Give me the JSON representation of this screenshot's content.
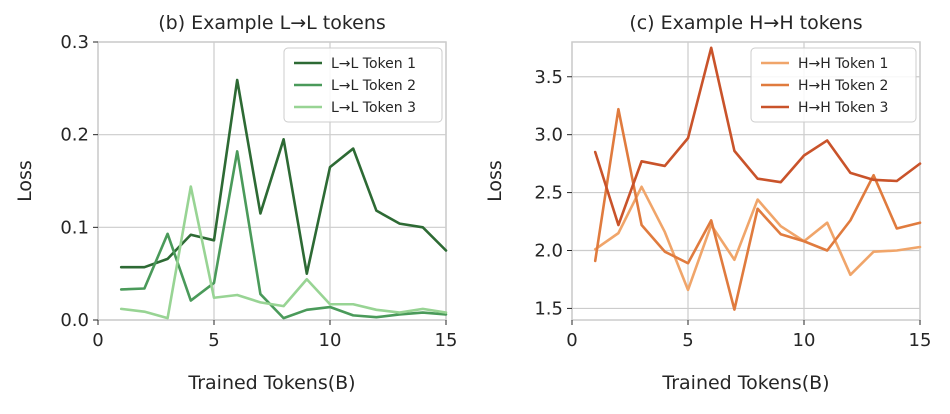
{
  "chart_data": [
    {
      "type": "line",
      "title": "(b) Example L→L tokens",
      "xlabel": "Trained Tokens(B)",
      "ylabel": "Loss",
      "xlim": [
        0,
        15
      ],
      "ylim": [
        0,
        0.3
      ],
      "xticks": [
        0,
        5,
        10,
        15
      ],
      "yticks": [
        0.0,
        0.1,
        0.2,
        0.3
      ],
      "ytick_labels": [
        "0.0",
        "0.1",
        "0.2",
        "0.3"
      ],
      "grid": true,
      "legend": "top-right",
      "x": [
        1,
        2,
        3,
        4,
        5,
        6,
        7,
        8,
        9,
        10,
        11,
        12,
        13,
        14,
        15
      ],
      "series": [
        {
          "name": "L→L Token 1",
          "color": "#2d6a34",
          "values": [
            0.057,
            0.057,
            0.066,
            0.092,
            0.086,
            0.259,
            0.115,
            0.195,
            0.05,
            0.165,
            0.185,
            0.118,
            0.104,
            0.1,
            0.075
          ]
        },
        {
          "name": "L→L Token 2",
          "color": "#4a9a5a",
          "values": [
            0.033,
            0.034,
            0.093,
            0.021,
            0.04,
            0.182,
            0.028,
            0.002,
            0.011,
            0.014,
            0.005,
            0.003,
            0.006,
            0.008,
            0.006
          ]
        },
        {
          "name": "L→L Token 3",
          "color": "#98d494",
          "values": [
            0.012,
            0.009,
            0.002,
            0.144,
            0.024,
            0.027,
            0.019,
            0.015,
            0.044,
            0.017,
            0.017,
            0.011,
            0.008,
            0.012,
            0.008
          ]
        }
      ]
    },
    {
      "type": "line",
      "title": "(c) Example H→H tokens",
      "xlabel": "Trained Tokens(B)",
      "ylabel": "Loss",
      "xlim": [
        0,
        15
      ],
      "ylim": [
        1.4,
        3.8
      ],
      "xticks": [
        0,
        5,
        10,
        15
      ],
      "yticks": [
        1.5,
        2.0,
        2.5,
        3.0,
        3.5
      ],
      "ytick_labels": [
        "1.5",
        "2.0",
        "2.5",
        "3.0",
        "3.5"
      ],
      "grid": true,
      "legend": "top-right",
      "x": [
        1,
        2,
        3,
        4,
        5,
        6,
        7,
        8,
        9,
        10,
        11,
        12,
        13,
        14,
        15
      ],
      "series": [
        {
          "name": "H→H Token 1",
          "color": "#f0a56a",
          "values": [
            2.01,
            2.15,
            2.55,
            2.16,
            1.66,
            2.22,
            1.92,
            2.44,
            2.21,
            2.08,
            2.24,
            1.79,
            1.99,
            2.0,
            2.03
          ]
        },
        {
          "name": "H→H Token 2",
          "color": "#e07b3e",
          "values": [
            1.91,
            3.22,
            2.22,
            1.99,
            1.89,
            2.26,
            1.49,
            2.36,
            2.14,
            2.08,
            2.0,
            2.26,
            2.65,
            2.19,
            2.24
          ]
        },
        {
          "name": "H→H Token 3",
          "color": "#c9532a",
          "values": [
            2.85,
            2.22,
            2.77,
            2.73,
            2.97,
            3.75,
            2.86,
            2.62,
            2.59,
            2.82,
            2.95,
            2.67,
            2.61,
            2.6,
            2.75
          ]
        }
      ]
    }
  ]
}
